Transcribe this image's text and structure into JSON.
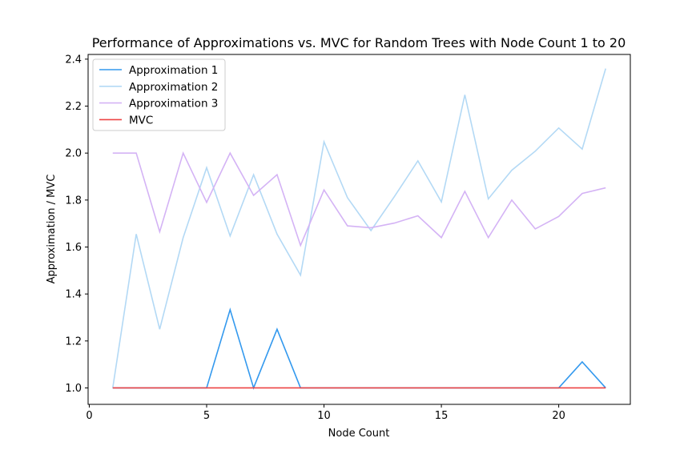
{
  "chart_data": {
    "type": "line",
    "title": "Performance of Approximations vs. MVC for Random Trees with Node Count 1 to 20",
    "xlabel": "Node Count",
    "ylabel": "Approximation / MVC",
    "xlim": [
      -0.05,
      23.05
    ],
    "ylim": [
      0.93,
      2.42
    ],
    "xticks": [
      0,
      5,
      10,
      15,
      20
    ],
    "xtick_labels": [
      "0",
      "5",
      "10",
      "15",
      "20"
    ],
    "yticks": [
      1.0,
      1.2,
      1.4,
      1.6,
      1.8,
      2.0,
      2.2,
      2.4
    ],
    "ytick_labels": [
      "1.0",
      "1.2",
      "1.4",
      "1.6",
      "1.8",
      "2.0",
      "2.2",
      "2.4"
    ],
    "grid": false,
    "legend_position": "top-left",
    "x": [
      1,
      2,
      3,
      4,
      5,
      6,
      7,
      8,
      9,
      10,
      11,
      12,
      13,
      14,
      15,
      16,
      17,
      18,
      19,
      20,
      21,
      22
    ],
    "series": [
      {
        "name": "Approximation 1",
        "color": "#3399ee",
        "values": [
          1.0,
          1.0,
          1.0,
          1.0,
          1.0,
          1.333,
          1.0,
          1.25,
          1.0,
          1.0,
          1.0,
          1.0,
          1.0,
          1.0,
          1.0,
          1.0,
          1.0,
          1.0,
          1.0,
          1.0,
          1.111,
          1.0
        ]
      },
      {
        "name": "Approximation 2",
        "color": "#b3d9f5",
        "values": [
          1.0,
          1.655,
          1.25,
          1.64,
          1.938,
          1.647,
          1.908,
          1.655,
          1.48,
          2.048,
          1.81,
          1.67,
          1.815,
          1.967,
          1.792,
          2.248,
          1.805,
          1.927,
          2.008,
          2.107,
          2.017,
          2.36
        ]
      },
      {
        "name": "Approximation 3",
        "color": "#d4b3f5",
        "values": [
          2.0,
          2.0,
          1.665,
          2.0,
          1.79,
          2.0,
          1.82,
          1.908,
          1.607,
          1.843,
          1.69,
          1.682,
          1.702,
          1.733,
          1.64,
          1.837,
          1.64,
          1.8,
          1.677,
          1.73,
          1.828,
          1.852
        ]
      },
      {
        "name": "MVC",
        "color": "#ee4444",
        "values": [
          1.0,
          1.0,
          1.0,
          1.0,
          1.0,
          1.0,
          1.0,
          1.0,
          1.0,
          1.0,
          1.0,
          1.0,
          1.0,
          1.0,
          1.0,
          1.0,
          1.0,
          1.0,
          1.0,
          1.0,
          1.0,
          1.0
        ]
      }
    ]
  }
}
